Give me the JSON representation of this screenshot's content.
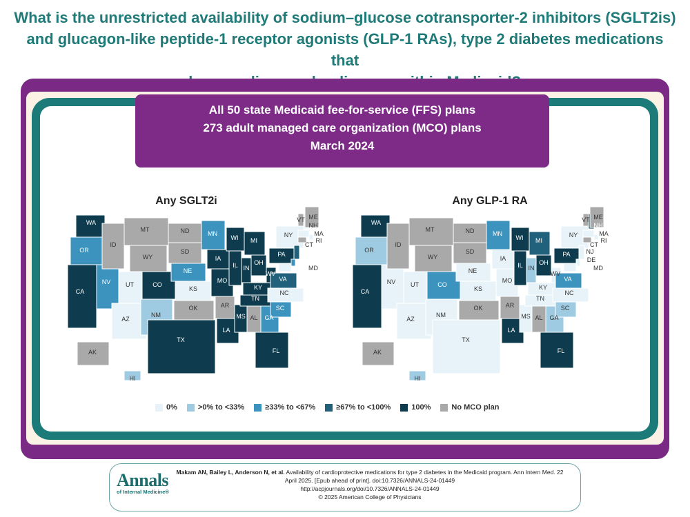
{
  "headline": {
    "line1": "What is the unrestricted availability of sodium–glucose cotransporter-2 inhibitors (SGLT2is)",
    "line2": "and glucagon-like peptide-1 receptor agonists (GLP-1 RAs), type 2 diabetes medications that",
    "line3": "reduce cardiovascular disease, within Medicaid?"
  },
  "banner": {
    "line1": "All 50 state Medicaid fee-for-service (FFS) plans",
    "line2": "273 adult managed care organization (MCO) plans",
    "line3": "March 2024"
  },
  "categories": [
    {
      "key": "c0",
      "label": "0%",
      "color": "#e8f3f9"
    },
    {
      "key": "c1",
      "label": ">0% to <33%",
      "color": "#9fcbe2"
    },
    {
      "key": "c2",
      "label": "≥33% to <67%",
      "color": "#3b93be"
    },
    {
      "key": "c3",
      "label": "≥67% to <100%",
      "color": "#22617c"
    },
    {
      "key": "c4",
      "label": "100%",
      "color": "#0e3c4e"
    },
    {
      "key": "nm",
      "label": "No MCO plan",
      "color": "#a9a9a9"
    }
  ],
  "maps": [
    {
      "title": "Any SGLT2i",
      "states": {
        "WA": "c4",
        "OR": "c2",
        "CA": "c4",
        "NV": "c2",
        "ID": "nm",
        "MT": "nm",
        "WY": "nm",
        "UT": "c0",
        "AZ": "c0",
        "CO": "c4",
        "NM": "c1",
        "ND": "nm",
        "SD": "nm",
        "NE": "c2",
        "KS": "c0",
        "OK": "nm",
        "TX": "c4",
        "MN": "c2",
        "IA": "c4",
        "MO": "c4",
        "AR": "nm",
        "LA": "c4",
        "WI": "c4",
        "IL": "c4",
        "MS": "c4",
        "MI": "c4",
        "IN": "c4",
        "KY": "c4",
        "TN": "c4",
        "AL": "nm",
        "GA": "c2",
        "FL": "c4",
        "OH": "c4",
        "WV": "c4",
        "VA": "c3",
        "NC": "c0",
        "SC": "c2",
        "PA": "c4",
        "NY": "c0",
        "VT": "nm",
        "NH": "c0",
        "ME": "nm",
        "MA": "c0",
        "RI": "c0",
        "CT": "nm",
        "NJ": "c3",
        "DE": "c2",
        "MD": "c0",
        "AK": "nm",
        "HI": "c1"
      }
    },
    {
      "title": "Any GLP-1 RA",
      "states": {
        "WA": "c4",
        "OR": "c1",
        "CA": "c4",
        "NV": "c0",
        "ID": "nm",
        "MT": "nm",
        "WY": "nm",
        "UT": "c0",
        "AZ": "c0",
        "CO": "c2",
        "NM": "c0",
        "ND": "nm",
        "SD": "nm",
        "NE": "c0",
        "KS": "c0",
        "OK": "nm",
        "TX": "c0",
        "MN": "c2",
        "IA": "c0",
        "MO": "c0",
        "AR": "nm",
        "LA": "c4",
        "WI": "c4",
        "IL": "c4",
        "MS": "c0",
        "MI": "c3",
        "IN": "c1",
        "KY": "c0",
        "TN": "c0",
        "AL": "nm",
        "GA": "c1",
        "FL": "c4",
        "OH": "c4",
        "WV": "c0",
        "VA": "c2",
        "NC": "c0",
        "SC": "c1",
        "PA": "c4",
        "NY": "c0",
        "VT": "nm",
        "NH": "c4",
        "ME": "nm",
        "MA": "c0",
        "RI": "c0",
        "CT": "nm",
        "NJ": "c0",
        "DE": "c0",
        "MD": "c0",
        "AK": "nm",
        "HI": "c1"
      }
    }
  ],
  "citation": {
    "logo_main": "Annals",
    "logo_sub": "of Internal Medicine®",
    "authors": "Makam AN, Bailey L, Anderson N, et al.",
    "line1_rest": " Availability of cardioprotective medications for type 2 diabetes in the Medicaid program. Ann Intern Med. 22",
    "line2": "April 2025. [Epub ahead of print]. doi:10.7326/ANNALS-24-01449",
    "line3": "http://acpjournals.org/doi/10.7326/ANNALS-24-01449",
    "line4": "© 2025 American College of Physicians"
  }
}
